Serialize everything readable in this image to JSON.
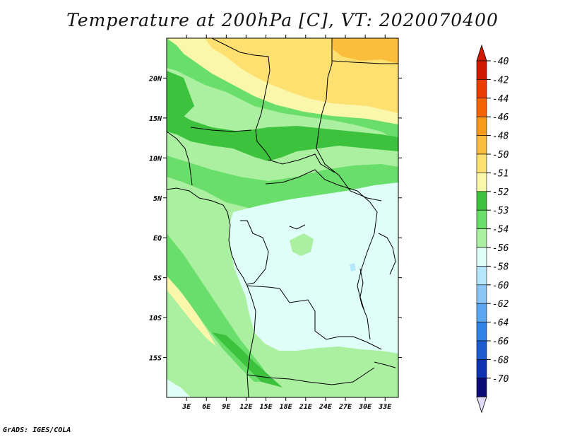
{
  "title": "Temperature at 200hPa [C], VT: 2020070400",
  "credit": "GrADS: IGES/COLA",
  "map": {
    "lon_range": [
      0,
      35
    ],
    "lat_range": [
      -20,
      25
    ],
    "lat_ticks": [
      {
        "value": 20,
        "label": "20N"
      },
      {
        "value": 15,
        "label": "15N"
      },
      {
        "value": 10,
        "label": "10N"
      },
      {
        "value": 5,
        "label": "5N"
      },
      {
        "value": 0,
        "label": "EQ"
      },
      {
        "value": -5,
        "label": "5S"
      },
      {
        "value": -10,
        "label": "10S"
      },
      {
        "value": -15,
        "label": "15S"
      }
    ],
    "lon_ticks": [
      {
        "value": 3,
        "label": "3E"
      },
      {
        "value": 6,
        "label": "6E"
      },
      {
        "value": 9,
        "label": "9E"
      },
      {
        "value": 12,
        "label": "12E"
      },
      {
        "value": 15,
        "label": "15E"
      },
      {
        "value": 18,
        "label": "18E"
      },
      {
        "value": 21,
        "label": "21E"
      },
      {
        "value": 24,
        "label": "24E"
      },
      {
        "value": 27,
        "label": "27E"
      },
      {
        "value": 30,
        "label": "30E"
      },
      {
        "value": 33,
        "label": "33E"
      }
    ]
  },
  "legend": {
    "labels": [
      "-40",
      "-42",
      "-44",
      "-46",
      "-48",
      "-50",
      "-51",
      "-52",
      "-53",
      "-54",
      "-56",
      "-58",
      "-60",
      "-62",
      "-64",
      "-66",
      "-68",
      "-70"
    ],
    "colors": [
      "#d21a00",
      "#ea3c00",
      "#f56400",
      "#fa9a1a",
      "#fbbd3c",
      "#fde070",
      "#fbf7aa",
      "#3cc23c",
      "#6ade6a",
      "#aaf0a0",
      "#e0fef8",
      "#b6e6fa",
      "#8cc6f5",
      "#5aa6f0",
      "#3282e6",
      "#1e5ad2",
      "#0e32b4",
      "#0a0a78"
    ],
    "top_arrow_color": "#d21a00",
    "bottom_arrow_color": "#e0dcf8"
  }
}
